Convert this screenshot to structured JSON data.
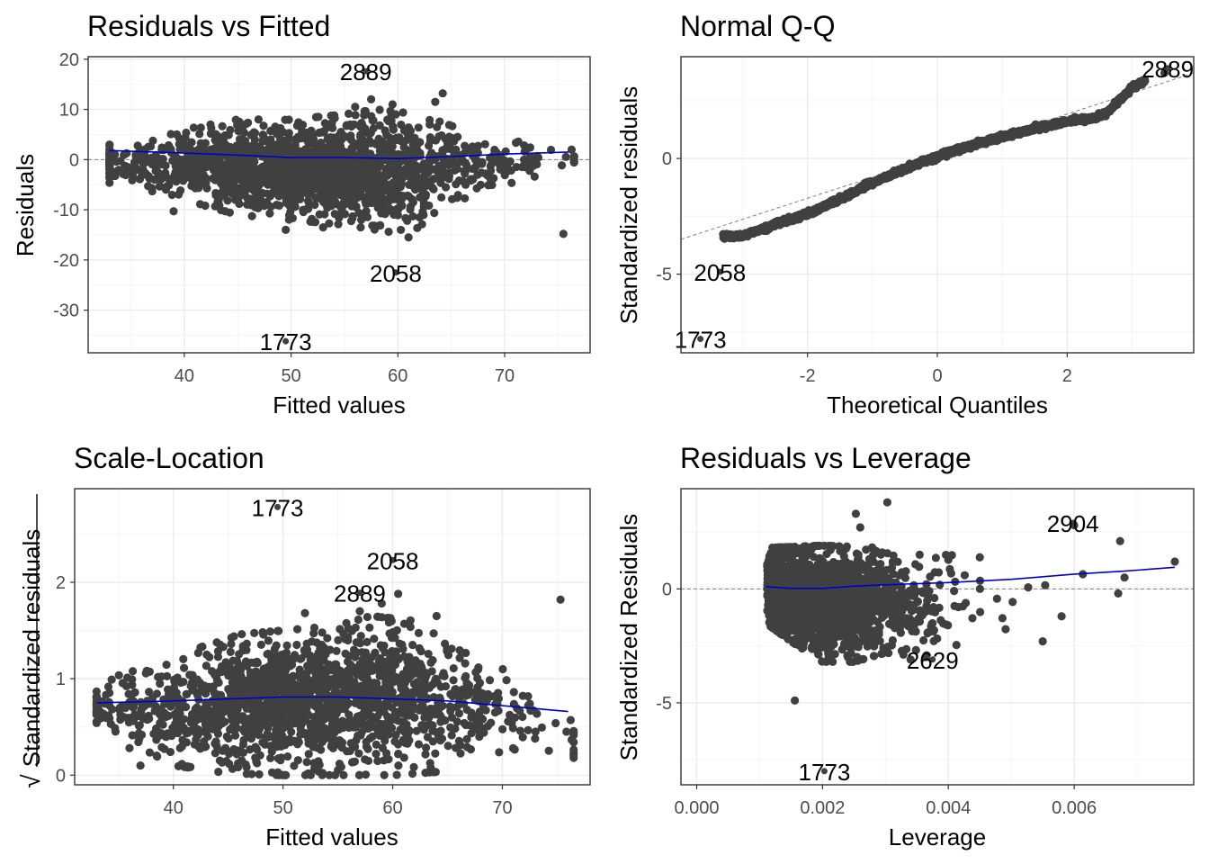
{
  "figure": {
    "point_color": "#404040",
    "smooth_color": "#0000cc",
    "reference_color": "#808080",
    "grid_major_color": "#ebebeb",
    "grid_minor_color": "#f5f5f5"
  },
  "chart_data": [
    {
      "id": "rvf",
      "type": "scatter",
      "title": "Residuals vs Fitted",
      "xlabel": "Fitted values",
      "ylabel": "Residuals",
      "xlim": [
        31,
        78
      ],
      "ylim": [
        -38.5,
        20.5
      ],
      "xticks": [
        40,
        50,
        60,
        70
      ],
      "yticks": [
        20,
        10,
        0,
        -10,
        -20,
        -30
      ],
      "hline": 0,
      "diagonal": null,
      "cloud": {
        "kind": "resid",
        "n": 1800,
        "x_range": [
          33,
          76.5
        ],
        "x_center": 52,
        "x_sd": 9,
        "hi": [
          [
            33,
            3
          ],
          [
            40,
            6
          ],
          [
            45,
            8
          ],
          [
            50,
            8
          ],
          [
            55,
            9
          ],
          [
            58,
            10
          ],
          [
            62,
            9
          ],
          [
            66,
            6
          ],
          [
            70,
            4
          ],
          [
            76,
            2
          ]
        ],
        "lo": [
          [
            33,
            -5
          ],
          [
            40,
            -8
          ],
          [
            45,
            -11
          ],
          [
            50,
            -12
          ],
          [
            55,
            -13
          ],
          [
            58,
            -14
          ],
          [
            61,
            -15
          ],
          [
            64,
            -10
          ],
          [
            68,
            -6
          ],
          [
            72,
            -4
          ],
          [
            76,
            -1
          ]
        ]
      },
      "points": [
        {
          "x": 64.2,
          "y": 13.2
        },
        {
          "x": 63.5,
          "y": 11.5
        },
        {
          "x": 59.5,
          "y": 11
        },
        {
          "x": 57.5,
          "y": 12
        },
        {
          "x": 56,
          "y": 10.5
        },
        {
          "x": 75.5,
          "y": -14.8
        },
        {
          "x": 39,
          "y": -10.3
        },
        {
          "x": 37,
          "y": -6.3
        },
        {
          "x": 33,
          "y": -3
        },
        {
          "x": 61,
          "y": -15.5
        },
        {
          "x": 53,
          "y": -13.5
        },
        {
          "x": 49.5,
          "y": -14
        }
      ],
      "smooth": [
        [
          33,
          1.8
        ],
        [
          40,
          1.3
        ],
        [
          45,
          0.9
        ],
        [
          50,
          0.4
        ],
        [
          55,
          0.4
        ],
        [
          60,
          0.2
        ],
        [
          65,
          0.6
        ],
        [
          70,
          1.1
        ],
        [
          76,
          1.5
        ]
      ],
      "labeled_points": [
        {
          "label": "2889",
          "x": 57,
          "y": 17.6
        },
        {
          "label": "2058",
          "x": 59.8,
          "y": -22.5
        },
        {
          "label": "1773",
          "x": 49.5,
          "y": -36.2
        }
      ]
    },
    {
      "id": "qq",
      "type": "scatter",
      "title": "Normal Q-Q",
      "xlabel": "Theoretical Quantiles",
      "ylabel": "Standardized residuals",
      "xlim": [
        -3.95,
        3.95
      ],
      "ylim": [
        -8.4,
        4.4
      ],
      "xticks": [
        -2,
        0,
        2
      ],
      "yticks": [
        0,
        -5
      ],
      "hline": null,
      "diagonal": {
        "intercept": 0.1,
        "slope": 0.91,
        "x_range": [
          -3.95,
          3.95
        ]
      },
      "cloud": {
        "kind": "curve",
        "n": 1600,
        "x_range": [
          -3.3,
          3.2
        ],
        "jitter": 0.05,
        "curve": [
          [
            -3.3,
            -3.4
          ],
          [
            -3,
            -3.35
          ],
          [
            -2.8,
            -3.15
          ],
          [
            -2.4,
            -2.75
          ],
          [
            -2,
            -2.4
          ],
          [
            -1.5,
            -1.75
          ],
          [
            -1,
            -1.05
          ],
          [
            -0.5,
            -0.45
          ],
          [
            0,
            0.1
          ],
          [
            0.5,
            0.55
          ],
          [
            1,
            0.95
          ],
          [
            1.5,
            1.3
          ],
          [
            2,
            1.6
          ],
          [
            2.4,
            1.75
          ],
          [
            2.6,
            1.95
          ],
          [
            2.8,
            2.5
          ],
          [
            3,
            3.05
          ],
          [
            3.2,
            3.35
          ]
        ]
      },
      "points": [
        {
          "x": 3.5,
          "y": 3.7
        }
      ],
      "smooth": null,
      "labeled_points": [
        {
          "label": "2889",
          "x": 3.55,
          "y": 3.9
        },
        {
          "label": "2058",
          "x": -3.35,
          "y": -4.9
        },
        {
          "label": "1773",
          "x": -3.65,
          "y": -7.8
        }
      ]
    },
    {
      "id": "sl",
      "type": "scatter",
      "title": "Scale-Location",
      "xlabel": "Fitted values",
      "ylabel": "Standardized residuals",
      "ylabel_radical": "√",
      "xlim": [
        31,
        78
      ],
      "ylim": [
        -0.1,
        2.97
      ],
      "xticks": [
        40,
        50,
        60,
        70
      ],
      "yticks": [
        2,
        1,
        0
      ],
      "hline": null,
      "diagonal": null,
      "cloud": {
        "kind": "scale",
        "n": 1800,
        "x_range": [
          33,
          76.5
        ],
        "x_center": 52,
        "x_sd": 9,
        "hi": [
          [
            33,
            0.9
          ],
          [
            36,
            1.1
          ],
          [
            40,
            1.2
          ],
          [
            45,
            1.45
          ],
          [
            50,
            1.5
          ],
          [
            55,
            1.55
          ],
          [
            58,
            1.65
          ],
          [
            62,
            1.6
          ],
          [
            66,
            1.3
          ],
          [
            70,
            1.1
          ],
          [
            76,
            0.9
          ]
        ],
        "lo": [
          [
            33,
            0.5
          ],
          [
            36,
            0.35
          ],
          [
            40,
            0.1
          ],
          [
            45,
            0.02
          ],
          [
            50,
            0
          ],
          [
            60,
            0
          ],
          [
            66,
            0.05
          ],
          [
            70,
            0.2
          ],
          [
            76,
            0.05
          ]
        ]
      },
      "points": [
        {
          "x": 75.3,
          "y": 1.82
        },
        {
          "x": 60.5,
          "y": 1.88
        },
        {
          "x": 59,
          "y": 1.78
        },
        {
          "x": 57,
          "y": 1.7
        },
        {
          "x": 64,
          "y": 1.65
        },
        {
          "x": 52,
          "y": 1.68
        },
        {
          "x": 36,
          "y": 0.28
        },
        {
          "x": 37,
          "y": 0.1
        }
      ],
      "smooth": [
        [
          33,
          0.75
        ],
        [
          40,
          0.77
        ],
        [
          45,
          0.79
        ],
        [
          50,
          0.81
        ],
        [
          55,
          0.81
        ],
        [
          60,
          0.79
        ],
        [
          65,
          0.77
        ],
        [
          70,
          0.72
        ],
        [
          76,
          0.66
        ]
      ],
      "labeled_points": [
        {
          "label": "1773",
          "x": 49.5,
          "y": 2.78
        },
        {
          "label": "2058",
          "x": 60,
          "y": 2.23
        },
        {
          "label": "2889",
          "x": 57,
          "y": 1.89
        }
      ]
    },
    {
      "id": "rvl",
      "type": "scatter",
      "title": "Residuals vs Leverage",
      "xlabel": "Leverage",
      "ylabel": "Standardized Residuals",
      "xlim": [
        -0.00025,
        0.0079
      ],
      "ylim": [
        -8.6,
        4.4
      ],
      "xticks": [
        0,
        0.002,
        0.004,
        0.006
      ],
      "xtick_labels": [
        "0.000",
        "0.002",
        "0.004",
        "0.006"
      ],
      "yticks": [
        0,
        -5
      ],
      "hline": 0,
      "diagonal": null,
      "cloud": {
        "kind": "lev",
        "n": 1800,
        "x_range": [
          0.00112,
          0.0068
        ],
        "x_min": 0.00112,
        "x_scale": 0.0012,
        "hi": [
          [
            0.0011,
            1.8
          ],
          [
            0.002,
            1.9
          ],
          [
            0.003,
            1.8
          ],
          [
            0.004,
            1.9
          ],
          [
            0.005,
            1.5
          ],
          [
            0.006,
            1.2
          ],
          [
            0.0068,
            1
          ]
        ],
        "lo": [
          [
            0.0011,
            -1.5
          ],
          [
            0.0015,
            -2.3
          ],
          [
            0.002,
            -3.2
          ],
          [
            0.0025,
            -3.2
          ],
          [
            0.003,
            -2.8
          ],
          [
            0.004,
            -3.1
          ],
          [
            0.0045,
            -2.5
          ],
          [
            0.005,
            -1.8
          ],
          [
            0.006,
            -0.8
          ],
          [
            0.0068,
            -0.3
          ]
        ]
      },
      "points": [
        {
          "x": 0.00303,
          "y": 3.8
        },
        {
          "x": 0.00253,
          "y": 3.3
        },
        {
          "x": 0.0026,
          "y": 2.7
        },
        {
          "x": 0.006,
          "y": 2.8
        },
        {
          "x": 0.00673,
          "y": 2.1
        },
        {
          "x": 0.0076,
          "y": 1.2
        },
        {
          "x": 0.0068,
          "y": 0.5
        },
        {
          "x": 0.0067,
          "y": -0.2
        },
        {
          "x": 0.00156,
          "y": -4.9
        },
        {
          "x": 0.0034,
          "y": -3.1
        },
        {
          "x": 0.0055,
          "y": -2.3
        },
        {
          "x": 0.0058,
          "y": -1.2
        }
      ],
      "smooth": [
        [
          0.0011,
          0.1
        ],
        [
          0.0015,
          0.02
        ],
        [
          0.002,
          0.02
        ],
        [
          0.0025,
          0.12
        ],
        [
          0.003,
          0.18
        ],
        [
          0.004,
          0.28
        ],
        [
          0.005,
          0.42
        ],
        [
          0.006,
          0.65
        ],
        [
          0.0068,
          0.78
        ],
        [
          0.0076,
          0.95
        ]
      ],
      "labeled_points": [
        {
          "label": "2904",
          "x": 0.00598,
          "y": 2.9
        },
        {
          "label": "2629",
          "x": 0.00375,
          "y": -3.1
        },
        {
          "label": "1773",
          "x": 0.00203,
          "y": -8.0
        }
      ]
    }
  ]
}
